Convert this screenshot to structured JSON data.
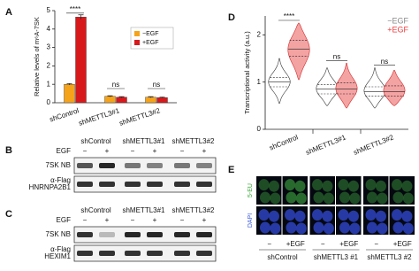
{
  "panel_labels": [
    "A",
    "B",
    "C",
    "D",
    "E"
  ],
  "chart_data": [
    {
      "type": "bar",
      "ylabel": "Relative levels of m⁶A-7SK",
      "categories": [
        "shControl",
        "shMETTL3#1",
        "shMETTL3#2"
      ],
      "series": [
        {
          "name": "−EGF",
          "color": "#f5a31a",
          "values": [
            1.0,
            0.35,
            0.3
          ],
          "errors": [
            0.04,
            0.03,
            0.03
          ]
        },
        {
          "name": "+EGF",
          "color": "#d7191c",
          "values": [
            4.65,
            0.3,
            0.28
          ],
          "errors": [
            0.12,
            0.03,
            0.03
          ]
        }
      ],
      "ylim": [
        0,
        5
      ],
      "yticks": [
        0,
        1,
        2,
        3,
        4,
        5
      ],
      "significance": [
        "****",
        "ns",
        "ns"
      ],
      "legend": "upper right"
    },
    {
      "type": "violin",
      "ylabel": "Transcriptional activity (a.u.)",
      "categories": [
        "shControl",
        "shMETTL3#1",
        "shMETTL3#2"
      ],
      "series": [
        {
          "name": "−EGF",
          "color": "#888888",
          "values": [
            1.0,
            0.85,
            0.8
          ],
          "q1": [
            0.9,
            0.75,
            0.7
          ],
          "q3": [
            1.1,
            0.95,
            0.9
          ],
          "min": [
            0.55,
            0.5,
            0.45
          ],
          "max": [
            1.5,
            1.3,
            1.3
          ]
        },
        {
          "name": "+EGF",
          "color": "#ee3b3b",
          "values": [
            1.7,
            0.85,
            0.8
          ],
          "q1": [
            1.55,
            0.75,
            0.7
          ],
          "q3": [
            1.88,
            0.98,
            0.92
          ],
          "min": [
            1.05,
            0.45,
            0.5
          ],
          "max": [
            2.25,
            1.4,
            1.25
          ]
        }
      ],
      "ylim": [
        0,
        2.4
      ],
      "yticks": [
        0,
        1,
        2
      ],
      "significance": [
        "****",
        "ns",
        "ns"
      ],
      "legend": "upper right"
    }
  ],
  "blots": [
    {
      "columns": [
        "shControl",
        "shMETTL3#1",
        "shMETTL3#2"
      ],
      "treatment": "EGF",
      "lanes": [
        "−",
        "+",
        "−",
        "+",
        "−",
        "+"
      ],
      "rows": [
        [
          "7SK NB"
        ],
        [
          "α-Flag",
          "HNRNPA2B1"
        ]
      ]
    },
    {
      "columns": [
        "shControl",
        "shMETTL3#1",
        "shMETTL3#2"
      ],
      "treatment": "EGF",
      "lanes": [
        "−",
        "+",
        "−",
        "+",
        "−",
        "+"
      ],
      "rows": [
        [
          "7SK NB"
        ],
        [
          "α-Flag",
          "HEXIM1"
        ]
      ]
    }
  ],
  "imaging": {
    "rows": [
      "5-EU",
      "DAPI"
    ],
    "lanes": [
      "−",
      "+EGF",
      "−",
      "+EGF",
      "−",
      "+EGF"
    ],
    "groups": [
      "shControl",
      "shMETTL3 #1",
      "shMETTL3 #2"
    ]
  }
}
